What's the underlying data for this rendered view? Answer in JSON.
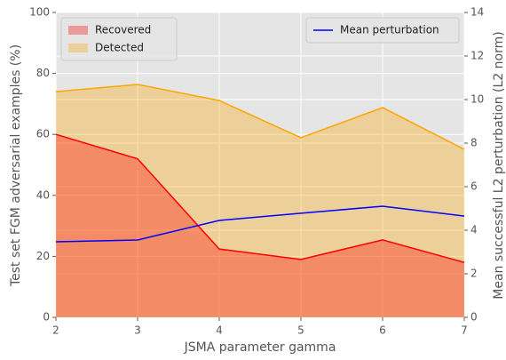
{
  "chart_data": {
    "type": "area",
    "xlabel": "JSMA parameter gamma",
    "ylabel": "Test set FGM adversarial examples (%)",
    "y2label": "Mean successful L2 perturbation (L2 norm)",
    "x": [
      2,
      3,
      4,
      5,
      6,
      7
    ],
    "xlim": [
      2,
      7
    ],
    "xticks": [
      2,
      3,
      4,
      5,
      6,
      7
    ],
    "ylim": [
      0,
      100
    ],
    "yticks": [
      0,
      20,
      40,
      60,
      80,
      100
    ],
    "y2lim": [
      0,
      14
    ],
    "y2ticks": [
      0,
      2,
      4,
      6,
      8,
      10,
      12,
      14
    ],
    "grid": true,
    "series": [
      {
        "name": "Detected",
        "type": "area",
        "color": "#ffa500",
        "values": [
          74,
          76.4,
          71.1,
          58.9,
          68.8,
          55.1
        ],
        "legend": "upper left"
      },
      {
        "name": "Recovered",
        "type": "area",
        "color": "#ff0000",
        "values": [
          60,
          52,
          22.4,
          19,
          25.4,
          18
        ],
        "legend": "upper left"
      },
      {
        "name": "Mean perturbation",
        "type": "line",
        "axis": "y2",
        "color": "#0000ff",
        "values": [
          3.47,
          3.55,
          4.45,
          4.78,
          5.1,
          4.65
        ],
        "legend": "upper right"
      }
    ]
  }
}
